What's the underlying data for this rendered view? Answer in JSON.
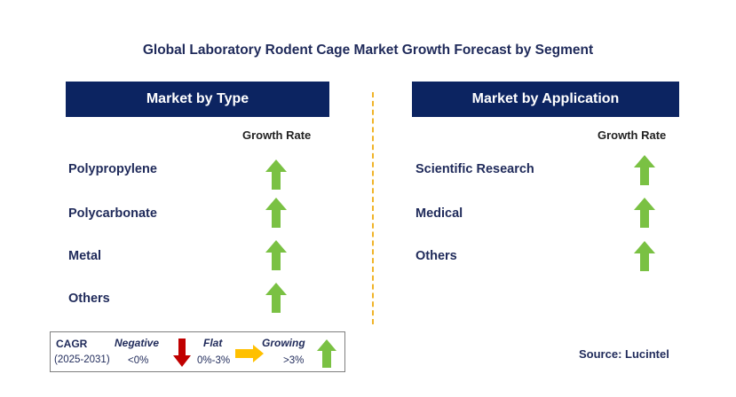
{
  "title": "Global Laboratory Rodent Cage Market Growth Forecast by Segment",
  "left_panel": {
    "header": "Market by Type",
    "growth_label": "Growth Rate",
    "rows": [
      {
        "label": "Polypropylene",
        "trend": "growing"
      },
      {
        "label": "Polycarbonate",
        "trend": "growing"
      },
      {
        "label": "Metal",
        "trend": "growing"
      },
      {
        "label": "Others",
        "trend": "growing"
      }
    ]
  },
  "right_panel": {
    "header": "Market by Application",
    "growth_label": "Growth Rate",
    "rows": [
      {
        "label": "Scientific Research",
        "trend": "growing"
      },
      {
        "label": "Medical",
        "trend": "growing"
      },
      {
        "label": "Others",
        "trend": "growing"
      }
    ]
  },
  "legend": {
    "cagr": "CAGR",
    "period": "(2025-2031)",
    "negative_label": "Negative",
    "negative_value": "<0%",
    "flat_label": "Flat",
    "flat_value": "0%-3%",
    "growing_label": "Growing",
    "growing_value": ">3%"
  },
  "source": "Source: Lucintel",
  "colors": {
    "header_bg": "#0c2461",
    "growing": "#7ac143",
    "negative": "#c00000",
    "flat": "#ffc000",
    "divider": "#f0b429"
  },
  "icons": {
    "growing": "up-arrow-icon",
    "negative": "down-arrow-icon",
    "flat": "right-arrow-icon"
  }
}
